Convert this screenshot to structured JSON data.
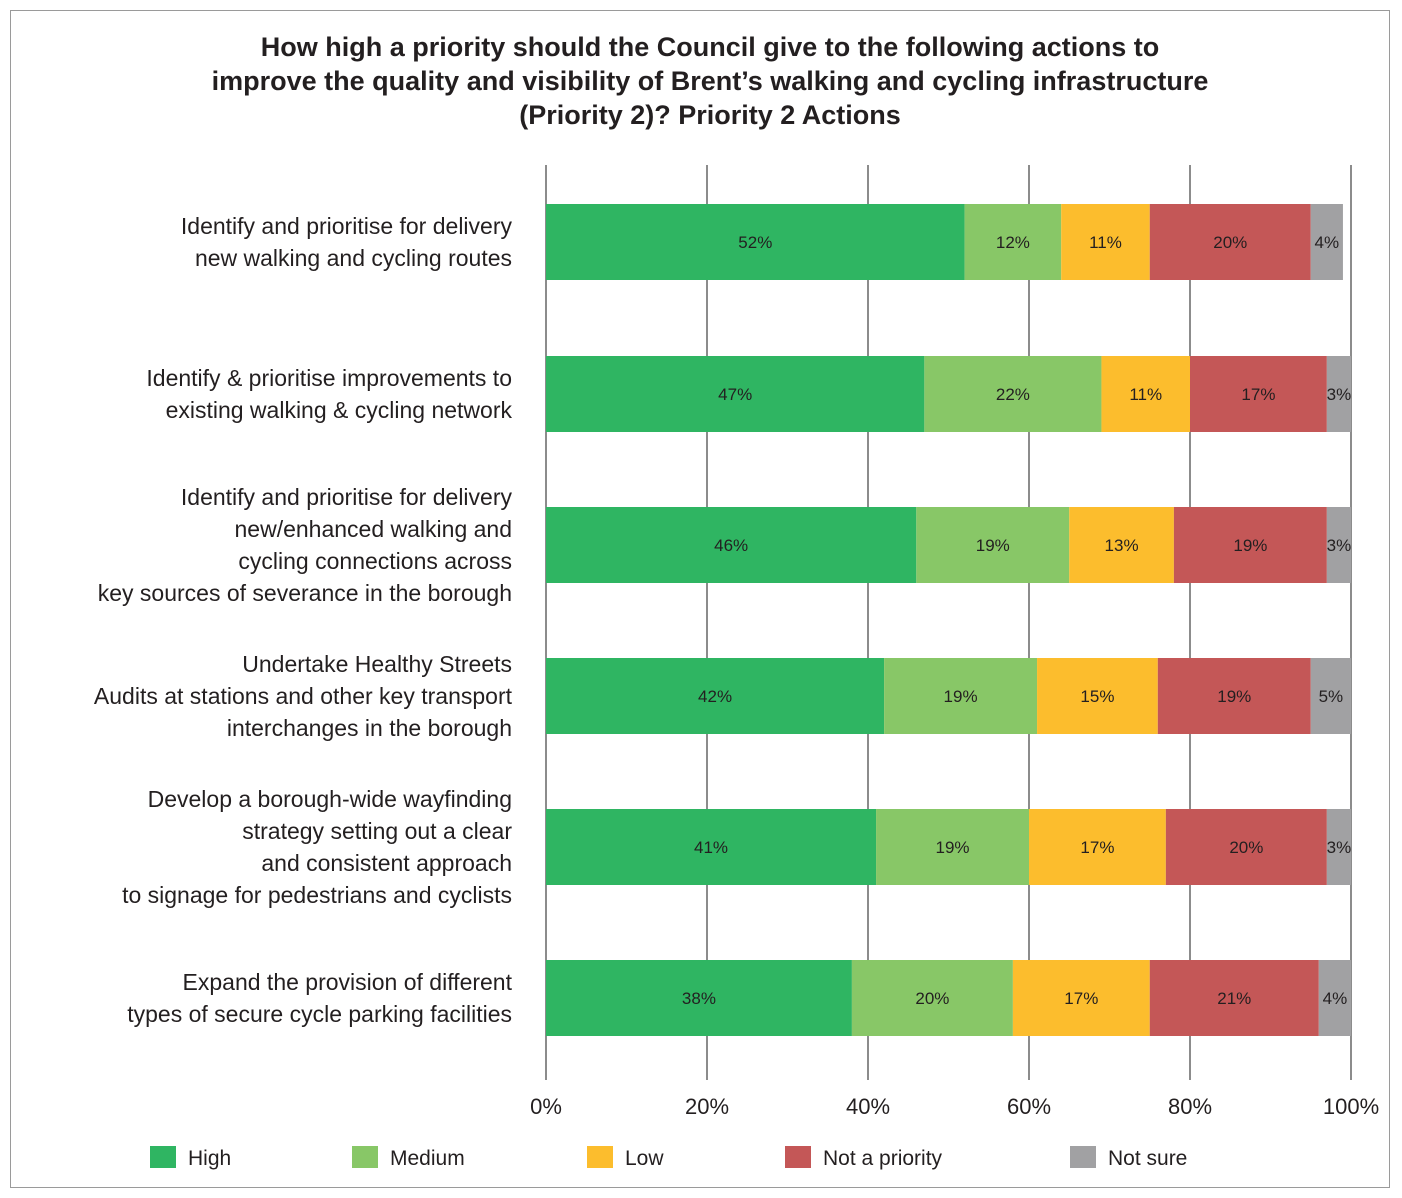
{
  "chart_data": {
    "type": "bar",
    "orientation": "horizontal",
    "stacked": true,
    "title_lines": [
      "How high a priority should the Council give to the following actions to",
      "improve the quality and visibility of Brent’s walking and cycling infrastructure",
      "(Priority 2)? Priority 2 Actions"
    ],
    "categories": [
      [
        "Identify and prioritise for delivery",
        "new walking and cycling routes"
      ],
      [
        "Identify & prioritise improvements to",
        "existing walking & cycling network"
      ],
      [
        "Identify and prioritise for delivery",
        "new/enhanced walking and",
        "cycling connections across",
        "key sources of severance in the borough"
      ],
      [
        "Undertake Healthy Streets",
        "Audits at stations and other key transport",
        "interchanges in the borough"
      ],
      [
        "Develop a borough-wide wayfinding",
        "strategy setting out a clear",
        "and consistent approach",
        "to signage for pedestrians and cyclists"
      ],
      [
        "Expand the provision of different",
        "types of secure cycle parking facilities"
      ]
    ],
    "series": [
      {
        "name": "High",
        "color": "#2fb562",
        "values": [
          52,
          47,
          46,
          42,
          41,
          38
        ],
        "labels": [
          "52%",
          "47%",
          "46%",
          "42%",
          "41%",
          "38%"
        ]
      },
      {
        "name": "Medium",
        "color": "#88c767",
        "values": [
          12,
          22,
          19,
          19,
          19,
          20
        ],
        "labels": [
          "12%",
          "22%",
          "19%",
          "19%",
          "19%",
          "20%"
        ]
      },
      {
        "name": "Low",
        "color": "#fcbd2d",
        "values": [
          11,
          11,
          13,
          15,
          17,
          17
        ],
        "labels": [
          "11%",
          "11%",
          "13%",
          "15%",
          "17%",
          "17%"
        ]
      },
      {
        "name": "Not a priority",
        "color": "#c45757",
        "values": [
          20,
          17,
          19,
          19,
          20,
          21
        ],
        "labels": [
          "20%",
          "17%",
          "19%",
          "19%",
          "20%",
          "21%"
        ]
      },
      {
        "name": "Not sure",
        "color": "#a1a1a3",
        "values": [
          4,
          3,
          3,
          5,
          3,
          4
        ],
        "labels": [
          "4%",
          "3%",
          "3%",
          "5%",
          "3%",
          "4%"
        ]
      }
    ],
    "xlim": [
      0,
      100
    ],
    "xticks": [
      "0%",
      "20%",
      "40%",
      "60%",
      "80%",
      "100%"
    ],
    "grid": true,
    "legend_position": "bottom"
  }
}
